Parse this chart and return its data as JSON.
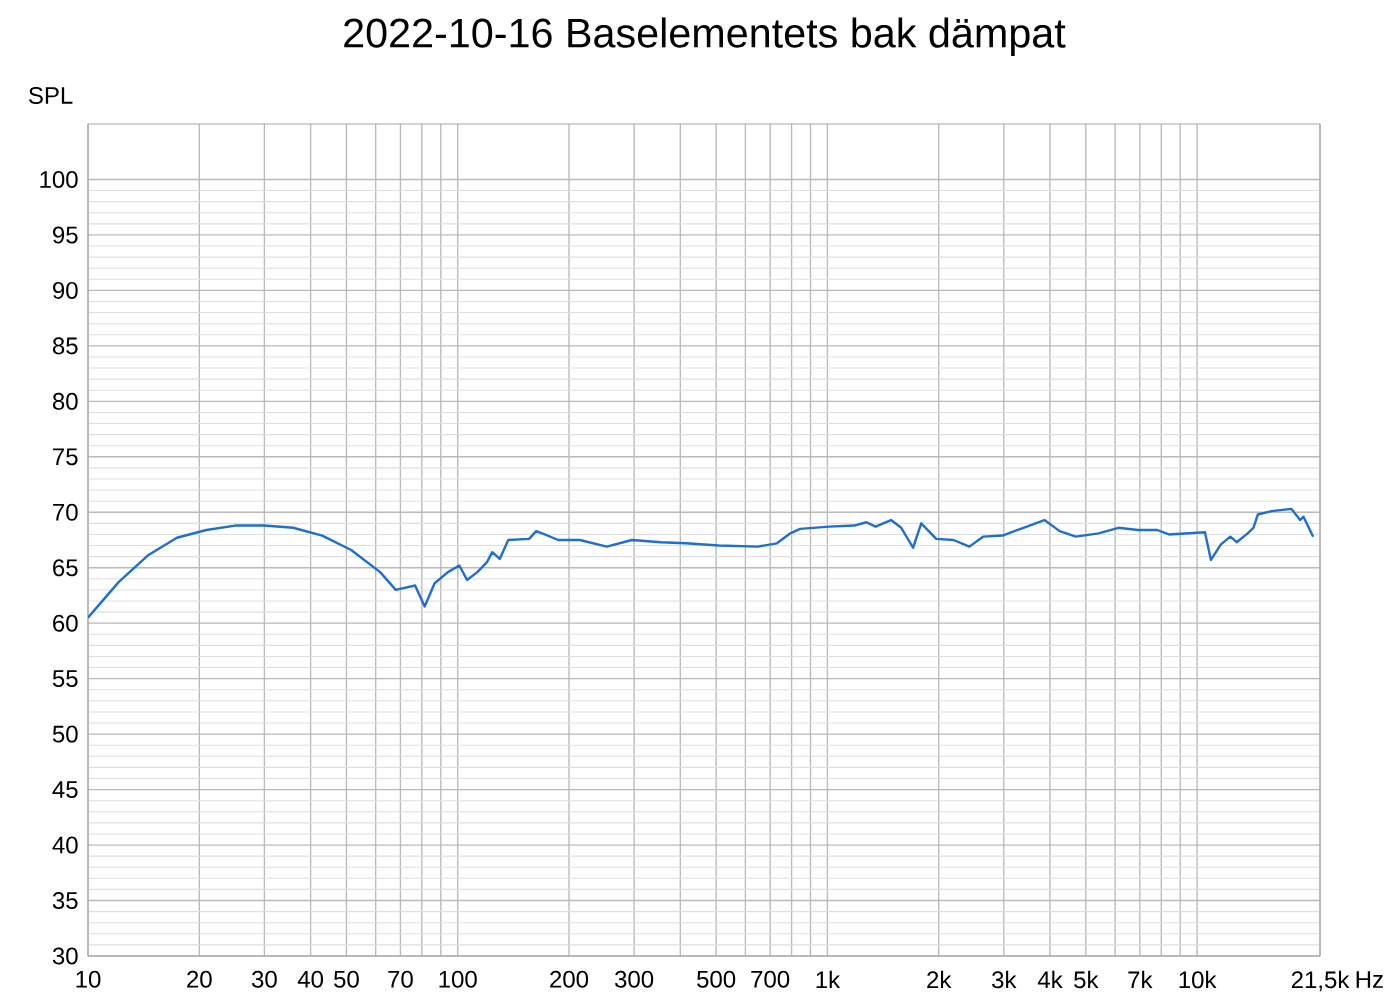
{
  "chart_data": {
    "type": "line",
    "title": "2022-10-16 Baselementets bak dämpat",
    "ylabel": "SPL",
    "xlabel": "Hz",
    "log": "x",
    "grid": true,
    "line_style": "solid",
    "xlim": [
      10,
      21500
    ],
    "ylim": [
      30,
      105
    ],
    "xticks": [
      10,
      20,
      30,
      40,
      50,
      {
        "value": 60,
        "label": null
      },
      70,
      {
        "value": 80,
        "label": null
      },
      {
        "value": 90,
        "label": null
      },
      100,
      200,
      300,
      {
        "value": 400,
        "label": null
      },
      500,
      {
        "value": 600,
        "label": null
      },
      700,
      {
        "value": 800,
        "label": null
      },
      {
        "value": 900,
        "label": null
      },
      {
        "value": 1000,
        "label": "1k"
      },
      {
        "value": 2000,
        "label": "2k"
      },
      {
        "value": 3000,
        "label": "3k"
      },
      {
        "value": 4000,
        "label": "4k"
      },
      {
        "value": 5000,
        "label": "5k"
      },
      {
        "value": 6000,
        "label": null
      },
      {
        "value": 7000,
        "label": "7k"
      },
      {
        "value": 8000,
        "label": null
      },
      {
        "value": 9000,
        "label": null
      },
      {
        "value": 10000,
        "label": "10k"
      },
      {
        "value": 21500,
        "label": "21,5k"
      }
    ],
    "yticks": [
      30,
      35,
      40,
      45,
      50,
      55,
      60,
      65,
      70,
      75,
      80,
      85,
      90,
      95,
      100
    ],
    "series": [
      {
        "color": "#1f6fd0",
        "x": [
          10,
          12.1,
          14.5,
          17.4,
          20.9,
          25,
          29.9,
          35.9,
          43,
          51.5,
          61.7,
          68,
          76.7,
          81.4,
          86.6,
          94.1,
          101,
          106,
          113,
          120,
          124,
          130,
          137,
          156,
          163,
          172,
          187,
          214,
          253,
          296,
          354,
          414,
          509,
          648,
          730,
          794,
          844,
          1011,
          1183,
          1274,
          1350,
          1486,
          1584,
          1705,
          1794,
          1970,
          2193,
          2421,
          2636,
          2978,
          3391,
          3864,
          4249,
          4695,
          5418,
          6125,
          6917,
          7799,
          8391,
          10500,
          10900,
          11600,
          12300,
          12800,
          13700,
          14200,
          14600,
          15900,
          18000,
          19000,
          19400,
          20600
        ],
        "values": [
          60.5,
          63.7,
          66.1,
          67.7,
          68.4,
          68.8,
          68.8,
          68.6,
          67.9,
          66.6,
          64.6,
          63.0,
          63.4,
          61.5,
          63.6,
          64.6,
          65.2,
          63.9,
          64.6,
          65.5,
          66.4,
          65.8,
          67.5,
          67.6,
          68.3,
          68.0,
          67.5,
          67.5,
          66.9,
          67.5,
          67.3,
          67.2,
          67.0,
          66.9,
          67.2,
          68.1,
          68.5,
          68.7,
          68.8,
          69.1,
          68.7,
          69.3,
          68.6,
          66.8,
          69.0,
          67.6,
          67.5,
          66.9,
          67.8,
          67.9,
          68.6,
          69.3,
          68.3,
          67.8,
          68.1,
          68.6,
          68.4,
          68.4,
          68.0,
          68.2,
          65.7,
          67.1,
          67.8,
          67.3,
          68.1,
          68.6,
          69.8,
          70.1,
          70.3,
          69.3,
          69.6,
          67.8
        ]
      }
    ]
  }
}
